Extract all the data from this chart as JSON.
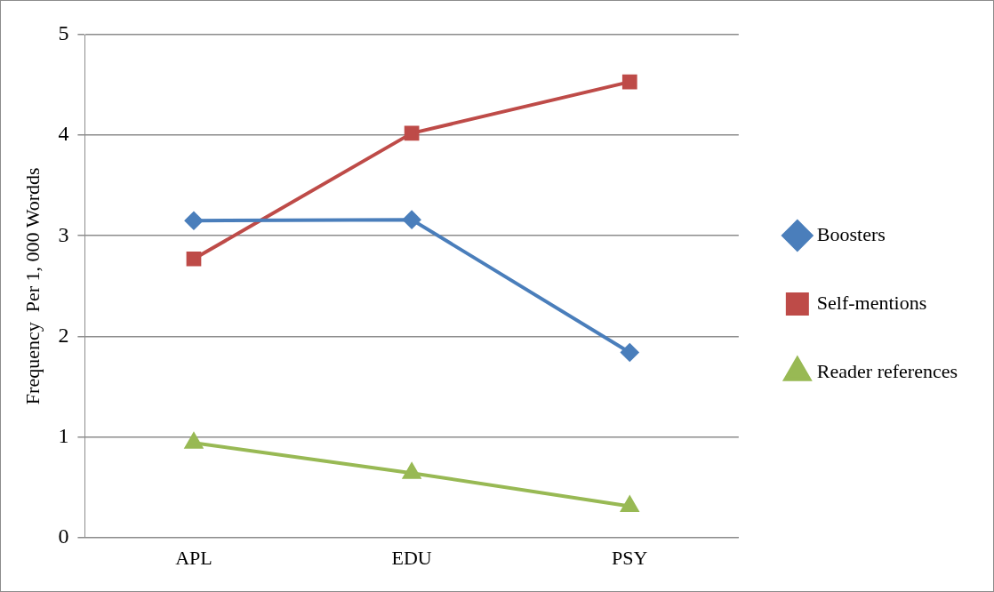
{
  "chart_data": {
    "type": "line",
    "ylabel": "Frequency  Per 1, 000 Wordds",
    "categories": [
      "APL",
      "EDU",
      "PSY"
    ],
    "series": [
      {
        "name": "Boosters",
        "color": "#4a7ebb",
        "values": [
          3.15,
          3.16,
          1.84
        ],
        "marker": "diamond"
      },
      {
        "name": "Self-mentions",
        "color": "#be4b48",
        "values": [
          2.77,
          4.02,
          4.53
        ],
        "marker": "square"
      },
      {
        "name": "Reader references",
        "color": "#98b954",
        "values": [
          0.94,
          0.64,
          0.31
        ],
        "marker": "triangle"
      }
    ],
    "ylim": [
      0,
      5
    ],
    "yticks": [
      0,
      1,
      2,
      3,
      4,
      5
    ],
    "grid": "y",
    "legend": "right",
    "line_style": "solid"
  }
}
